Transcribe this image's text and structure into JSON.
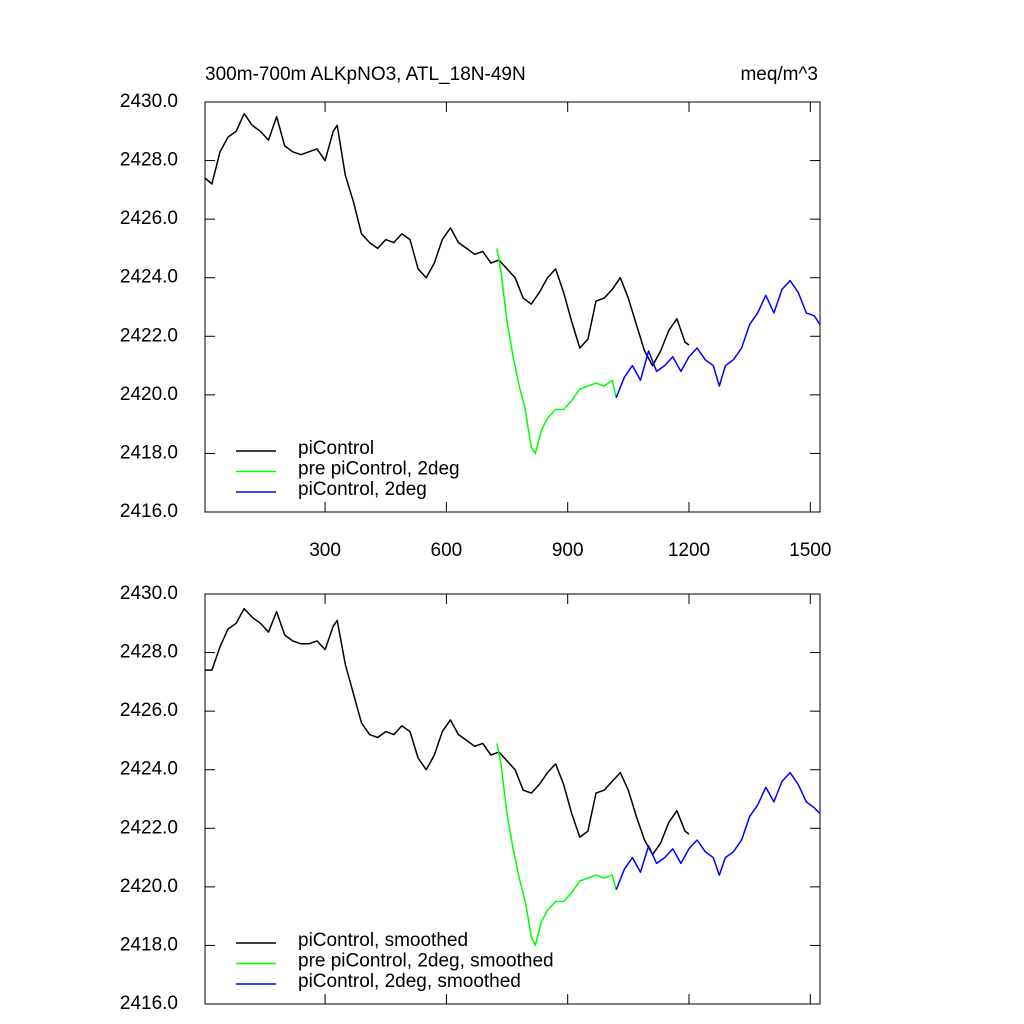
{
  "chart_data": [
    {
      "type": "line",
      "title": "300m-700m ALKpNO3, ATL_18N-49N",
      "units": "meq/m^3",
      "xlim": [
        3,
        1524
      ],
      "ylim": [
        2416,
        2430
      ],
      "xticks": [
        300,
        600,
        900,
        1200,
        1500
      ],
      "show_xtick_labels": true,
      "yticks": [
        {
          "value": 2416,
          "label": "2416.0"
        },
        {
          "value": 2418,
          "label": "2418.0"
        },
        {
          "value": 2420,
          "label": "2420.0"
        },
        {
          "value": 2422,
          "label": "2422.0"
        },
        {
          "value": 2424,
          "label": "2424.0"
        },
        {
          "value": 2426,
          "label": "2426.0"
        },
        {
          "value": 2428,
          "label": "2428.0"
        },
        {
          "value": 2430,
          "label": "2430.0"
        }
      ],
      "legend": "lower left",
      "series": [
        {
          "name": "piControl",
          "color": "#000000",
          "x": [
            3,
            20,
            40,
            60,
            80,
            100,
            120,
            140,
            160,
            180,
            200,
            220,
            240,
            260,
            280,
            300,
            320,
            330,
            350,
            370,
            390,
            410,
            430,
            450,
            470,
            490,
            510,
            530,
            550,
            570,
            590,
            610,
            630,
            650,
            670,
            690,
            710,
            730,
            750,
            770,
            790,
            810,
            830,
            850,
            870,
            890,
            910,
            930,
            950,
            970,
            990,
            1010,
            1030,
            1050,
            1070,
            1090,
            1110,
            1130,
            1150,
            1170,
            1190,
            1200
          ],
          "values": [
            2427.4,
            2427.2,
            2428.3,
            2428.8,
            2429.0,
            2429.6,
            2429.2,
            2429.0,
            2428.7,
            2429.5,
            2428.5,
            2428.3,
            2428.2,
            2428.3,
            2428.4,
            2428.0,
            2429.0,
            2429.2,
            2427.5,
            2426.6,
            2425.5,
            2425.2,
            2425.0,
            2425.3,
            2425.2,
            2425.5,
            2425.3,
            2424.3,
            2424.0,
            2424.5,
            2425.3,
            2425.7,
            2425.2,
            2425.0,
            2424.8,
            2424.9,
            2424.5,
            2424.6,
            2424.3,
            2424.0,
            2423.3,
            2423.1,
            2423.5,
            2424.0,
            2424.3,
            2423.5,
            2422.5,
            2421.6,
            2421.9,
            2423.2,
            2423.3,
            2423.6,
            2424.0,
            2423.3,
            2422.4,
            2421.5,
            2421.0,
            2421.5,
            2422.2,
            2422.6,
            2421.8,
            2421.7
          ]
        },
        {
          "name": "pre piControl, 2deg",
          "color": "#00ff00",
          "x": [
            725,
            735,
            750,
            765,
            780,
            795,
            810,
            820,
            835,
            850,
            870,
            890,
            910,
            930,
            950,
            970,
            990,
            1010,
            1020
          ],
          "values": [
            2425.0,
            2424.2,
            2422.5,
            2421.3,
            2420.3,
            2419.5,
            2418.2,
            2418.0,
            2418.8,
            2419.2,
            2419.5,
            2419.5,
            2419.8,
            2420.2,
            2420.3,
            2420.4,
            2420.3,
            2420.5,
            2419.9
          ]
        },
        {
          "name": "piControl, 2deg",
          "color": "#0000ff",
          "x": [
            1020,
            1040,
            1060,
            1080,
            1100,
            1120,
            1140,
            1160,
            1180,
            1200,
            1220,
            1240,
            1260,
            1275,
            1290,
            1310,
            1330,
            1350,
            1370,
            1390,
            1410,
            1430,
            1450,
            1470,
            1490,
            1510,
            1524
          ],
          "values": [
            2419.9,
            2420.6,
            2421.0,
            2420.5,
            2421.5,
            2420.8,
            2421.0,
            2421.3,
            2420.8,
            2421.3,
            2421.6,
            2421.2,
            2421.0,
            2420.3,
            2421.0,
            2421.2,
            2421.6,
            2422.4,
            2422.8,
            2423.4,
            2422.8,
            2423.6,
            2423.9,
            2423.5,
            2422.8,
            2422.7,
            2422.4
          ]
        }
      ]
    },
    {
      "type": "line",
      "xlim": [
        3,
        1524
      ],
      "ylim": [
        2416,
        2430
      ],
      "xticks": [
        300,
        600,
        900,
        1200,
        1500
      ],
      "show_xtick_labels": false,
      "yticks": [
        {
          "value": 2416,
          "label": "2416.0"
        },
        {
          "value": 2418,
          "label": "2418.0"
        },
        {
          "value": 2420,
          "label": "2420.0"
        },
        {
          "value": 2422,
          "label": "2422.0"
        },
        {
          "value": 2424,
          "label": "2424.0"
        },
        {
          "value": 2426,
          "label": "2426.0"
        },
        {
          "value": 2428,
          "label": "2428.0"
        },
        {
          "value": 2430,
          "label": "2430.0"
        }
      ],
      "legend": "lower left",
      "series": [
        {
          "name": "piControl, smoothed",
          "color": "#000000",
          "x": [
            3,
            20,
            40,
            60,
            80,
            100,
            120,
            140,
            160,
            180,
            200,
            220,
            240,
            260,
            280,
            300,
            320,
            330,
            350,
            370,
            390,
            410,
            430,
            450,
            470,
            490,
            510,
            530,
            550,
            570,
            590,
            610,
            630,
            650,
            670,
            690,
            710,
            730,
            750,
            770,
            790,
            810,
            830,
            850,
            870,
            890,
            910,
            930,
            950,
            970,
            990,
            1010,
            1030,
            1050,
            1070,
            1090,
            1110,
            1130,
            1150,
            1170,
            1190,
            1200
          ],
          "values": [
            2427.4,
            2427.4,
            2428.2,
            2428.8,
            2429.0,
            2429.5,
            2429.2,
            2429.0,
            2428.7,
            2429.4,
            2428.6,
            2428.4,
            2428.3,
            2428.3,
            2428.4,
            2428.1,
            2428.9,
            2429.1,
            2427.6,
            2426.6,
            2425.6,
            2425.2,
            2425.1,
            2425.3,
            2425.2,
            2425.5,
            2425.3,
            2424.4,
            2424.0,
            2424.5,
            2425.3,
            2425.7,
            2425.2,
            2425.0,
            2424.8,
            2424.9,
            2424.5,
            2424.6,
            2424.3,
            2424.0,
            2423.3,
            2423.2,
            2423.5,
            2423.9,
            2424.2,
            2423.5,
            2422.5,
            2421.7,
            2421.9,
            2423.2,
            2423.3,
            2423.6,
            2423.9,
            2423.3,
            2422.4,
            2421.6,
            2421.1,
            2421.5,
            2422.2,
            2422.6,
            2421.9,
            2421.8
          ]
        },
        {
          "name": "pre piControl, 2deg, smoothed",
          "color": "#00ff00",
          "x": [
            725,
            735,
            750,
            765,
            780,
            795,
            810,
            820,
            835,
            850,
            870,
            890,
            910,
            930,
            950,
            970,
            990,
            1010,
            1020
          ],
          "values": [
            2424.9,
            2424.2,
            2422.5,
            2421.3,
            2420.3,
            2419.5,
            2418.3,
            2418.0,
            2418.8,
            2419.2,
            2419.5,
            2419.5,
            2419.8,
            2420.2,
            2420.3,
            2420.4,
            2420.3,
            2420.4,
            2419.9
          ]
        },
        {
          "name": "piControl, 2deg, smoothed",
          "color": "#0000ff",
          "x": [
            1020,
            1040,
            1060,
            1080,
            1100,
            1120,
            1140,
            1160,
            1180,
            1200,
            1220,
            1240,
            1260,
            1275,
            1290,
            1310,
            1330,
            1350,
            1370,
            1390,
            1410,
            1430,
            1450,
            1470,
            1490,
            1510,
            1524
          ],
          "values": [
            2419.9,
            2420.6,
            2421.0,
            2420.5,
            2421.4,
            2420.8,
            2421.0,
            2421.3,
            2420.8,
            2421.3,
            2421.6,
            2421.2,
            2421.0,
            2420.4,
            2421.0,
            2421.2,
            2421.6,
            2422.4,
            2422.8,
            2423.4,
            2422.9,
            2423.6,
            2423.9,
            2423.5,
            2422.9,
            2422.7,
            2422.5
          ]
        }
      ]
    }
  ]
}
